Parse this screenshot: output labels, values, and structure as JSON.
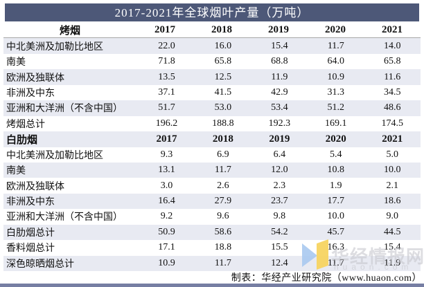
{
  "title": "2017-2021年全球烟叶产量（万吨）",
  "footer": {
    "credit": "制表：华经产业研究院（www.huaon.com）"
  },
  "watermark": {
    "brand": "华经情报网",
    "domain": "huaon.com",
    "logo": "huaon-logo"
  },
  "colors": {
    "title_bar": "#4d5878",
    "stripe": "#e8eaf2",
    "bottom_bar": "#767ea3",
    "header_underline": "#a8a8a8",
    "watermark_blue": "#a9c9f0",
    "watermark_yellow": "#f6d35c",
    "watermark_text": "#c7c8ce"
  },
  "chart_data": {
    "type": "table",
    "title": "2017-2021年全球烟叶产量（万吨）",
    "unit": "万吨",
    "columns": [
      "2017",
      "2018",
      "2019",
      "2020",
      "2021"
    ],
    "sections": [
      {
        "name": "烤烟",
        "header_align": "center",
        "rows": [
          {
            "label": "中北美洲及加勒比地区",
            "values": [
              22.0,
              16.0,
              15.4,
              11.7,
              14.0
            ]
          },
          {
            "label": "南美",
            "values": [
              71.8,
              65.8,
              68.8,
              64.0,
              65.8
            ]
          },
          {
            "label": "欧洲及独联体",
            "values": [
              13.5,
              12.5,
              11.9,
              10.9,
              11.6
            ]
          },
          {
            "label": "非洲及中东",
            "values": [
              37.1,
              41.5,
              42.9,
              31.3,
              34.5
            ]
          },
          {
            "label": "亚洲和大洋洲（不含中国）",
            "values": [
              51.7,
              53.0,
              53.4,
              51.2,
              48.6
            ]
          },
          {
            "label": "烤烟总计",
            "values": [
              196.2,
              188.8,
              192.3,
              169.1,
              174.5
            ]
          }
        ]
      },
      {
        "name": "白肋烟",
        "header_align": "left",
        "rows": [
          {
            "label": "中北美洲及加勒比地区",
            "values": [
              9.3,
              6.9,
              6.4,
              5.4,
              5.0
            ]
          },
          {
            "label": "南美",
            "values": [
              13.1,
              11.7,
              12.0,
              10.8,
              10.0
            ]
          },
          {
            "label": "欧洲及独联体",
            "values": [
              3.0,
              2.6,
              2.3,
              1.9,
              2.1
            ]
          },
          {
            "label": "非洲及中东",
            "values": [
              16.4,
              27.9,
              23.7,
              17.7,
              18.6
            ]
          },
          {
            "label": "亚洲和大洋洲（不含中国）",
            "values": [
              9.2,
              9.6,
              9.8,
              10.0,
              9.0
            ]
          },
          {
            "label": "白肋烟总计",
            "values": [
              50.9,
              58.6,
              54.2,
              45.7,
              44.5
            ]
          },
          {
            "label": "香料烟总计",
            "values": [
              17.1,
              18.8,
              15.5,
              16.3,
              15.4
            ]
          },
          {
            "label": "深色晾晒烟总计",
            "values": [
              10.9,
              11.7,
              12.4,
              11.7,
              11.9
            ]
          }
        ]
      }
    ]
  }
}
